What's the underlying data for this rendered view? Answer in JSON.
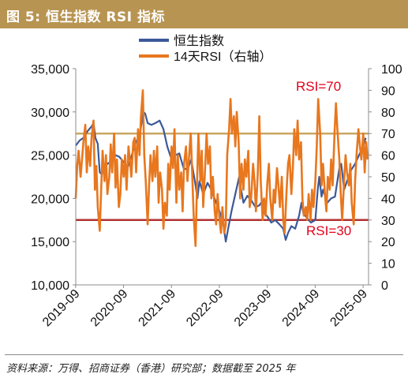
{
  "figure": {
    "title": "图 5:  恒生指数 RSI 指标",
    "source": "资料来源：万得、招商证券（香港）研究部；数据截至 2025 年"
  },
  "colors": {
    "title_bg": "#b89452",
    "hsi": "#3b5998",
    "rsi": "#e8771e",
    "rsi70_line": "#c9a763",
    "rsi30_line": "#b03030",
    "annotation": "#e3001b"
  },
  "chart_data": {
    "type": "line",
    "x_ticks": [
      "2019-09",
      "2020-09",
      "2021-09",
      "2022-09",
      "2023-09",
      "2024-09",
      "2025-09"
    ],
    "x_range": [
      2019.67,
      2025.78
    ],
    "y_left": {
      "min": 10000,
      "max": 35000,
      "ticks": [
        "10,000",
        "15,000",
        "20,000",
        "25,000",
        "30,000",
        "35,000"
      ]
    },
    "y_right": {
      "min": 0,
      "max": 100,
      "ticks": [
        "0",
        "10",
        "20",
        "30",
        "40",
        "50",
        "60",
        "70",
        "80",
        "90",
        "100"
      ]
    },
    "legend": [
      "恒生指数",
      "14天RSI（右轴）"
    ],
    "series": [
      {
        "name": "恒生指数",
        "axis": "left",
        "points": [
          [
            2019.67,
            26100
          ],
          [
            2019.75,
            26700
          ],
          [
            2019.83,
            27000
          ],
          [
            2019.92,
            27800
          ],
          [
            2020.0,
            28300
          ],
          [
            2020.04,
            28700
          ],
          [
            2020.08,
            27000
          ],
          [
            2020.13,
            26300
          ],
          [
            2020.17,
            23000
          ],
          [
            2020.21,
            22800
          ],
          [
            2020.25,
            23500
          ],
          [
            2020.33,
            24000
          ],
          [
            2020.42,
            24300
          ],
          [
            2020.5,
            25000
          ],
          [
            2020.58,
            24800
          ],
          [
            2020.67,
            24200
          ],
          [
            2020.75,
            23500
          ],
          [
            2020.83,
            24800
          ],
          [
            2020.92,
            26500
          ],
          [
            2021.0,
            27200
          ],
          [
            2021.08,
            30000
          ],
          [
            2021.12,
            29800
          ],
          [
            2021.17,
            28700
          ],
          [
            2021.25,
            28500
          ],
          [
            2021.33,
            28700
          ],
          [
            2021.42,
            29000
          ],
          [
            2021.5,
            28000
          ],
          [
            2021.58,
            26000
          ],
          [
            2021.67,
            24500
          ],
          [
            2021.75,
            25000
          ],
          [
            2021.83,
            25200
          ],
          [
            2021.92,
            23500
          ],
          [
            2022.0,
            23300
          ],
          [
            2022.08,
            24500
          ],
          [
            2022.17,
            21500
          ],
          [
            2022.21,
            20000
          ],
          [
            2022.25,
            22000
          ],
          [
            2022.33,
            20500
          ],
          [
            2022.42,
            21800
          ],
          [
            2022.5,
            21000
          ],
          [
            2022.58,
            19800
          ],
          [
            2022.67,
            18500
          ],
          [
            2022.75,
            17000
          ],
          [
            2022.8,
            15000
          ],
          [
            2022.85,
            16500
          ],
          [
            2022.92,
            18500
          ],
          [
            2023.0,
            20500
          ],
          [
            2023.08,
            22500
          ],
          [
            2023.12,
            21000
          ],
          [
            2023.17,
            19500
          ],
          [
            2023.25,
            20300
          ],
          [
            2023.33,
            19800
          ],
          [
            2023.42,
            19000
          ],
          [
            2023.5,
            19200
          ],
          [
            2023.58,
            19800
          ],
          [
            2023.62,
            18200
          ],
          [
            2023.67,
            17900
          ],
          [
            2023.75,
            17200
          ],
          [
            2023.83,
            17500
          ],
          [
            2023.92,
            17000
          ],
          [
            2024.0,
            16500
          ],
          [
            2024.05,
            15200
          ],
          [
            2024.1,
            16000
          ],
          [
            2024.17,
            16800
          ],
          [
            2024.25,
            16500
          ],
          [
            2024.33,
            18000
          ],
          [
            2024.38,
            19500
          ],
          [
            2024.42,
            18300
          ],
          [
            2024.5,
            17700
          ],
          [
            2024.58,
            17200
          ],
          [
            2024.67,
            17500
          ],
          [
            2024.72,
            21000
          ],
          [
            2024.75,
            22500
          ],
          [
            2024.8,
            20200
          ],
          [
            2024.83,
            21000
          ],
          [
            2024.92,
            19500
          ],
          [
            2025.0,
            20000
          ],
          [
            2025.08,
            20200
          ],
          [
            2025.17,
            23500
          ],
          [
            2025.21,
            24000
          ],
          [
            2025.27,
            21000
          ],
          [
            2025.33,
            22000
          ],
          [
            2025.42,
            23300
          ],
          [
            2025.5,
            24000
          ],
          [
            2025.58,
            25000
          ],
          [
            2025.67,
            26000
          ],
          [
            2025.72,
            27000
          ]
        ]
      },
      {
        "name": "14天RSI（右轴）",
        "axis": "right",
        "points": [
          [
            2019.67,
            40
          ],
          [
            2019.7,
            55
          ],
          [
            2019.73,
            62
          ],
          [
            2019.77,
            50
          ],
          [
            2019.8,
            58
          ],
          [
            2019.83,
            66
          ],
          [
            2019.87,
            74
          ],
          [
            2019.9,
            52
          ],
          [
            2019.93,
            64
          ],
          [
            2019.97,
            55
          ],
          [
            2020.0,
            68
          ],
          [
            2020.04,
            76
          ],
          [
            2020.07,
            44
          ],
          [
            2020.1,
            55
          ],
          [
            2020.13,
            36
          ],
          [
            2020.17,
            25
          ],
          [
            2020.2,
            44
          ],
          [
            2020.23,
            62
          ],
          [
            2020.27,
            48
          ],
          [
            2020.3,
            60
          ],
          [
            2020.33,
            42
          ],
          [
            2020.37,
            50
          ],
          [
            2020.4,
            65
          ],
          [
            2020.43,
            52
          ],
          [
            2020.47,
            70
          ],
          [
            2020.5,
            45
          ],
          [
            2020.53,
            58
          ],
          [
            2020.57,
            36
          ],
          [
            2020.6,
            42
          ],
          [
            2020.63,
            58
          ],
          [
            2020.67,
            50
          ],
          [
            2020.7,
            60
          ],
          [
            2020.73,
            44
          ],
          [
            2020.77,
            64
          ],
          [
            2020.8,
            58
          ],
          [
            2020.83,
            50
          ],
          [
            2020.87,
            66
          ],
          [
            2020.9,
            68
          ],
          [
            2020.93,
            52
          ],
          [
            2020.97,
            72
          ],
          [
            2021.0,
            60
          ],
          [
            2021.03,
            78
          ],
          [
            2021.07,
            90
          ],
          [
            2021.1,
            60
          ],
          [
            2021.13,
            48
          ],
          [
            2021.17,
            28
          ],
          [
            2021.2,
            46
          ],
          [
            2021.23,
            60
          ],
          [
            2021.27,
            48
          ],
          [
            2021.3,
            62
          ],
          [
            2021.33,
            50
          ],
          [
            2021.37,
            64
          ],
          [
            2021.4,
            38
          ],
          [
            2021.43,
            52
          ],
          [
            2021.47,
            44
          ],
          [
            2021.5,
            26
          ],
          [
            2021.53,
            38
          ],
          [
            2021.57,
            32
          ],
          [
            2021.6,
            56
          ],
          [
            2021.63,
            44
          ],
          [
            2021.67,
            64
          ],
          [
            2021.7,
            54
          ],
          [
            2021.73,
            72
          ],
          [
            2021.77,
            38
          ],
          [
            2021.8,
            60
          ],
          [
            2021.83,
            44
          ],
          [
            2021.87,
            52
          ],
          [
            2021.9,
            34
          ],
          [
            2021.93,
            56
          ],
          [
            2021.97,
            64
          ],
          [
            2022.0,
            48
          ],
          [
            2022.03,
            58
          ],
          [
            2022.07,
            70
          ],
          [
            2022.1,
            52
          ],
          [
            2022.13,
            32
          ],
          [
            2022.17,
            18
          ],
          [
            2022.2,
            46
          ],
          [
            2022.23,
            70
          ],
          [
            2022.27,
            48
          ],
          [
            2022.3,
            62
          ],
          [
            2022.33,
            36
          ],
          [
            2022.37,
            54
          ],
          [
            2022.4,
            70
          ],
          [
            2022.43,
            56
          ],
          [
            2022.47,
            64
          ],
          [
            2022.5,
            40
          ],
          [
            2022.53,
            50
          ],
          [
            2022.57,
            34
          ],
          [
            2022.6,
            28
          ],
          [
            2022.63,
            42
          ],
          [
            2022.67,
            30
          ],
          [
            2022.7,
            24
          ],
          [
            2022.73,
            36
          ],
          [
            2022.77,
            24
          ],
          [
            2022.8,
            28
          ],
          [
            2022.83,
            60
          ],
          [
            2022.87,
            72
          ],
          [
            2022.9,
            86
          ],
          [
            2022.93,
            70
          ],
          [
            2022.97,
            78
          ],
          [
            2023.0,
            64
          ],
          [
            2023.03,
            80
          ],
          [
            2023.07,
            66
          ],
          [
            2023.1,
            40
          ],
          [
            2023.13,
            56
          ],
          [
            2023.17,
            44
          ],
          [
            2023.2,
            58
          ],
          [
            2023.23,
            50
          ],
          [
            2023.27,
            62
          ],
          [
            2023.3,
            36
          ],
          [
            2023.33,
            40
          ],
          [
            2023.37,
            56
          ],
          [
            2023.4,
            48
          ],
          [
            2023.43,
            34
          ],
          [
            2023.47,
            52
          ],
          [
            2023.5,
            78
          ],
          [
            2023.53,
            48
          ],
          [
            2023.57,
            30
          ],
          [
            2023.6,
            40
          ],
          [
            2023.63,
            32
          ],
          [
            2023.67,
            48
          ],
          [
            2023.7,
            56
          ],
          [
            2023.73,
            40
          ],
          [
            2023.77,
            30
          ],
          [
            2023.8,
            44
          ],
          [
            2023.83,
            38
          ],
          [
            2023.87,
            54
          ],
          [
            2023.9,
            46
          ],
          [
            2023.93,
            36
          ],
          [
            2023.97,
            50
          ],
          [
            2024.0,
            30
          ],
          [
            2024.03,
            24
          ],
          [
            2024.07,
            44
          ],
          [
            2024.1,
            56
          ],
          [
            2024.13,
            60
          ],
          [
            2024.17,
            42
          ],
          [
            2024.2,
            54
          ],
          [
            2024.23,
            72
          ],
          [
            2024.27,
            60
          ],
          [
            2024.3,
            76
          ],
          [
            2024.33,
            58
          ],
          [
            2024.37,
            66
          ],
          [
            2024.4,
            40
          ],
          [
            2024.43,
            32
          ],
          [
            2024.47,
            36
          ],
          [
            2024.5,
            30
          ],
          [
            2024.53,
            42
          ],
          [
            2024.57,
            30
          ],
          [
            2024.6,
            44
          ],
          [
            2024.63,
            36
          ],
          [
            2024.67,
            48
          ],
          [
            2024.7,
            64
          ],
          [
            2024.73,
            86
          ],
          [
            2024.77,
            70
          ],
          [
            2024.8,
            46
          ],
          [
            2024.83,
            56
          ],
          [
            2024.87,
            42
          ],
          [
            2024.9,
            34
          ],
          [
            2024.93,
            50
          ],
          [
            2024.97,
            44
          ],
          [
            2025.0,
            58
          ],
          [
            2025.03,
            46
          ],
          [
            2025.07,
            70
          ],
          [
            2025.1,
            84
          ],
          [
            2025.13,
            72
          ],
          [
            2025.17,
            58
          ],
          [
            2025.2,
            42
          ],
          [
            2025.23,
            30
          ],
          [
            2025.27,
            48
          ],
          [
            2025.3,
            60
          ],
          [
            2025.33,
            52
          ],
          [
            2025.37,
            46
          ],
          [
            2025.4,
            56
          ],
          [
            2025.43,
            38
          ],
          [
            2025.47,
            28
          ],
          [
            2025.5,
            48
          ],
          [
            2025.53,
            60
          ],
          [
            2025.57,
            72
          ],
          [
            2025.6,
            64
          ],
          [
            2025.63,
            58
          ],
          [
            2025.67,
            70
          ],
          [
            2025.7,
            52
          ],
          [
            2025.73,
            66
          ],
          [
            2025.76,
            58
          ]
        ]
      }
    ],
    "reference_lines": [
      {
        "axis": "right",
        "value": 70,
        "label": "RSI=70"
      },
      {
        "axis": "right",
        "value": 30,
        "label": "RSI=30"
      }
    ],
    "grid": false,
    "legend_position": "top-center"
  }
}
